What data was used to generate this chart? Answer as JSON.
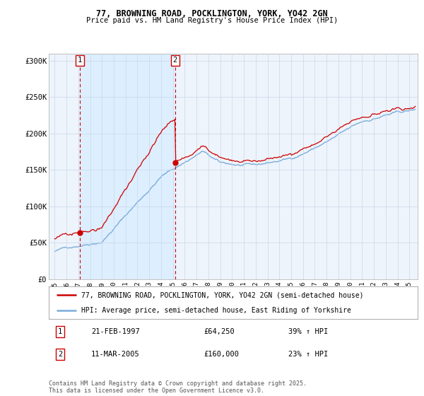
{
  "title": "77, BROWNING ROAD, POCKLINGTON, YORK, YO42 2GN",
  "subtitle": "Price paid vs. HM Land Registry's House Price Index (HPI)",
  "legend_line1": "77, BROWNING ROAD, POCKLINGTON, YORK, YO42 2GN (semi-detached house)",
  "legend_line2": "HPI: Average price, semi-detached house, East Riding of Yorkshire",
  "annotation1_text_date": "21-FEB-1997",
  "annotation1_text_price": "£64,250",
  "annotation1_text_hpi": "39% ↑ HPI",
  "annotation2_text_date": "11-MAR-2005",
  "annotation2_text_price": "£160,000",
  "annotation2_text_hpi": "23% ↑ HPI",
  "footer": "Contains HM Land Registry data © Crown copyright and database right 2025.\nThis data is licensed under the Open Government Licence v3.0.",
  "red_color": "#cc0000",
  "blue_color": "#7aaddb",
  "highlight_bg": "#ddeeff",
  "plot_bg": "#eef4fb",
  "grid_color": "#c8d8e8",
  "ylim": [
    0,
    310000
  ],
  "xlim": [
    1994.5,
    2025.7
  ],
  "yticks": [
    0,
    50000,
    100000,
    150000,
    200000,
    250000,
    300000
  ],
  "ytick_labels": [
    "£0",
    "£50K",
    "£100K",
    "£150K",
    "£200K",
    "£250K",
    "£300K"
  ],
  "xticks": [
    1995,
    1996,
    1997,
    1998,
    1999,
    2000,
    2001,
    2002,
    2003,
    2004,
    2005,
    2006,
    2007,
    2008,
    2009,
    2010,
    2011,
    2012,
    2013,
    2014,
    2015,
    2016,
    2017,
    2018,
    2019,
    2020,
    2021,
    2022,
    2023,
    2024,
    2025
  ],
  "ann1_x": 1997.14,
  "ann1_y": 64250,
  "ann2_x": 2005.19,
  "ann2_y": 160000
}
